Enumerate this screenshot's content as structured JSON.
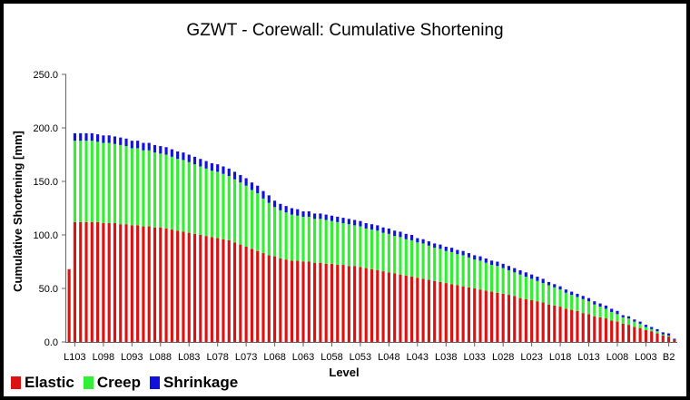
{
  "chart_data": {
    "type": "bar",
    "stacked": true,
    "title": "GZWT - Corewall: Cumulative Shortening",
    "xlabel": "Level",
    "ylabel": "Cumulative Shortening [mm]",
    "ylim": [
      0,
      250
    ],
    "yticks": [
      "0.0",
      "50.0",
      "100.0",
      "150.0",
      "200.0",
      "250.0"
    ],
    "xtick_labels": [
      "L103",
      "L098",
      "L093",
      "L088",
      "L083",
      "L078",
      "L073",
      "L068",
      "L063",
      "L058",
      "L053",
      "L048",
      "L043",
      "L038",
      "L033",
      "L028",
      "L023",
      "L018",
      "L013",
      "L008",
      "L003",
      "B2"
    ],
    "grid": false,
    "legend_position": "bottom-left",
    "categories": [
      "L104",
      "L103",
      "L102",
      "L101",
      "L100",
      "L099",
      "L098",
      "L097",
      "L096",
      "L095",
      "L094",
      "L093",
      "L092",
      "L091",
      "L090",
      "L089",
      "L088",
      "L087",
      "L086",
      "L085",
      "L084",
      "L083",
      "L082",
      "L081",
      "L080",
      "L079",
      "L078",
      "L077",
      "L076",
      "L075",
      "L074",
      "L073",
      "L072",
      "L071",
      "L070",
      "L069",
      "L068",
      "L067",
      "L066",
      "L065",
      "L064",
      "L063",
      "L062",
      "L061",
      "L060",
      "L059",
      "L058",
      "L057",
      "L056",
      "L055",
      "L054",
      "L053",
      "L052",
      "L051",
      "L050",
      "L049",
      "L048",
      "L047",
      "L046",
      "L045",
      "L044",
      "L043",
      "L042",
      "L041",
      "L040",
      "L039",
      "L038",
      "L037",
      "L036",
      "L035",
      "L034",
      "L033",
      "L032",
      "L031",
      "L030",
      "L029",
      "L028",
      "L027",
      "L026",
      "L025",
      "L024",
      "L023",
      "L022",
      "L021",
      "L020",
      "L019",
      "L018",
      "L017",
      "L016",
      "L015",
      "L014",
      "L013",
      "L012",
      "L011",
      "L010",
      "L009",
      "L008",
      "L007",
      "L006",
      "L005",
      "L004",
      "L003",
      "L002",
      "L001",
      "B1",
      "B2",
      "B3"
    ],
    "series": [
      {
        "name": "Elastic",
        "color": "#dd1111",
        "values": [
          68,
          112,
          112,
          112,
          112,
          112,
          111,
          111,
          111,
          110,
          110,
          109,
          109,
          108,
          108,
          107,
          107,
          106,
          105,
          104,
          103,
          102,
          101,
          100,
          99,
          98,
          97,
          96,
          95,
          93,
          91,
          89,
          87,
          85,
          83,
          81,
          80,
          78,
          77,
          76,
          76,
          75,
          75,
          74,
          74,
          73,
          73,
          72,
          72,
          71,
          71,
          70,
          69,
          68,
          67,
          66,
          65,
          64,
          63,
          62,
          61,
          60,
          59,
          58,
          57,
          56,
          55,
          54,
          53,
          52,
          51,
          50,
          49,
          48,
          47,
          46,
          45,
          44,
          43,
          41,
          40,
          39,
          38,
          37,
          35,
          34,
          33,
          31,
          30,
          29,
          27,
          26,
          24,
          23,
          22,
          20,
          19,
          17,
          16,
          14,
          13,
          11,
          10,
          8,
          6,
          5,
          2
        ]
      },
      {
        "name": "Creep",
        "color": "#33ee33",
        "values": [
          0,
          76,
          76,
          76,
          76,
          75,
          75,
          75,
          74,
          74,
          73,
          72,
          72,
          71,
          71,
          70,
          69,
          69,
          68,
          67,
          67,
          66,
          65,
          64,
          63,
          62,
          62,
          61,
          60,
          59,
          58,
          57,
          55,
          54,
          51,
          49,
          46,
          45,
          44,
          43,
          42,
          42,
          42,
          41,
          41,
          41,
          40,
          40,
          39,
          39,
          38,
          38,
          37,
          37,
          37,
          36,
          36,
          35,
          35,
          34,
          34,
          33,
          33,
          32,
          31,
          31,
          30,
          30,
          29,
          29,
          28,
          27,
          27,
          26,
          25,
          25,
          24,
          23,
          22,
          22,
          21,
          20,
          19,
          18,
          18,
          17,
          16,
          15,
          14,
          13,
          13,
          12,
          11,
          10,
          9,
          8,
          7,
          6,
          6,
          5,
          4,
          3,
          2,
          2,
          1,
          1,
          0
        ]
      },
      {
        "name": "Shrinkage",
        "color": "#1111dd",
        "values": [
          0,
          7,
          7,
          7,
          7,
          7,
          7,
          7,
          7,
          7,
          7,
          7,
          7,
          7,
          7,
          7,
          7,
          7,
          7,
          7,
          7,
          7,
          7,
          7,
          7,
          7,
          7,
          7,
          7,
          7,
          7,
          7,
          7,
          7,
          7,
          7,
          6,
          6,
          6,
          6,
          6,
          5,
          5,
          5,
          5,
          5,
          5,
          5,
          5,
          5,
          5,
          5,
          5,
          5,
          5,
          5,
          5,
          5,
          5,
          5,
          5,
          4,
          4,
          4,
          4,
          4,
          4,
          4,
          4,
          4,
          4,
          4,
          4,
          4,
          4,
          4,
          4,
          4,
          4,
          4,
          4,
          4,
          4,
          4,
          3,
          3,
          3,
          3,
          3,
          3,
          3,
          3,
          3,
          3,
          3,
          3,
          3,
          2,
          2,
          2,
          2,
          2,
          2,
          2,
          2,
          2,
          1
        ]
      }
    ]
  }
}
